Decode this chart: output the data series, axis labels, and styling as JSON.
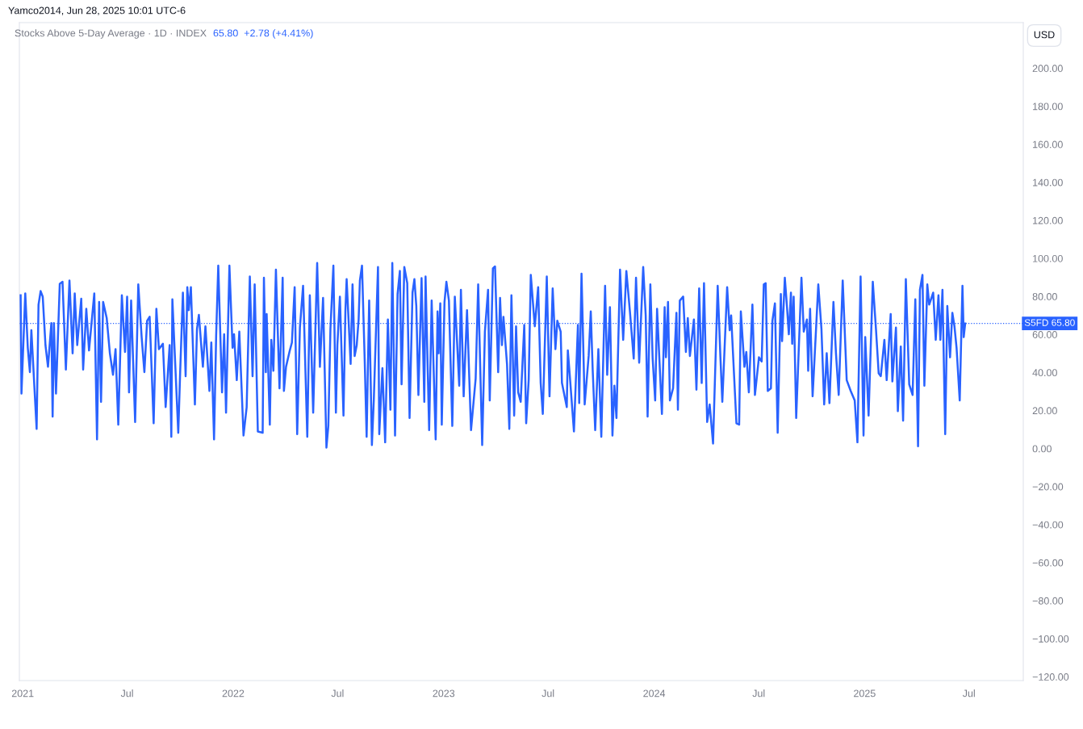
{
  "chart_data": {
    "type": "line",
    "title": "Stocks Above 5-Day Average · 1D · INDEX",
    "subtitle": "65.80  +2.78 (+4.41%)",
    "annotations": [
      "Yamco2014, Jun 28, 2025 10:01 UTC-6",
      "USD"
    ],
    "series": [
      {
        "name": null,
        "color": "#2962ff",
        "x": [
          2020.99,
          2020.994,
          2021.012,
          2021.024,
          2021.034,
          2021.041,
          2021.066,
          2021.075,
          2021.085,
          2021.095,
          2021.108,
          2021.12,
          2021.136,
          2021.142,
          2021.148,
          2021.158,
          2021.176,
          2021.189,
          2021.205,
          2021.222,
          2021.237,
          2021.247,
          2021.259,
          2021.278,
          2021.287,
          2021.302,
          2021.315,
          2021.34,
          2021.353,
          2021.363,
          2021.372,
          2021.382,
          2021.399,
          2021.414,
          2021.429,
          2021.441,
          2021.454,
          2021.471,
          2021.486,
          2021.496,
          2021.505,
          2021.515,
          2021.534,
          2021.549,
          2021.565,
          2021.578,
          2021.591,
          2021.603,
          2021.622,
          2021.635,
          2021.647,
          2021.666,
          2021.679,
          2021.698,
          2021.706,
          2021.711,
          2021.739,
          2021.748,
          2021.761,
          2021.774,
          2021.782,
          2021.789,
          2021.799,
          2021.818,
          2021.828,
          2021.837,
          2021.856,
          2021.868,
          2021.887,
          2021.896,
          2021.909,
          2021.919,
          2021.929,
          2021.947,
          2021.957,
          2021.966,
          2021.982,
          2021.997,
          2022.004,
          2022.017,
          2022.029,
          2022.049,
          2022.064,
          2022.079,
          2022.092,
          2022.102,
          2022.117,
          2022.14,
          2022.146,
          2022.155,
          2022.159,
          2022.174,
          2022.181,
          2022.191,
          2022.203,
          2022.22,
          2022.235,
          2022.241,
          2022.251,
          2022.269,
          2022.279,
          2022.292,
          2022.304,
          2022.317,
          2022.332,
          2022.352,
          2022.364,
          2022.38,
          2022.399,
          2022.412,
          2022.427,
          2022.443,
          2022.452,
          2022.462,
          2022.476,
          2022.488,
          2022.495,
          2022.507,
          2022.524,
          2022.533,
          2022.539,
          2022.558,
          2022.567,
          2022.577,
          2022.587,
          2022.596,
          2022.602,
          2022.612,
          2022.625,
          2022.634,
          2022.646,
          2022.659,
          2022.668,
          2022.688,
          2022.694,
          2022.709,
          2022.722,
          2022.735,
          2022.747,
          2022.756,
          2022.769,
          2022.781,
          2022.792,
          2022.8,
          2022.813,
          2022.827,
          2022.838,
          2022.852,
          2022.861,
          2022.87,
          2022.88,
          2022.895,
          2022.908,
          2022.914,
          2022.931,
          2022.943,
          2022.962,
          2022.971,
          2022.976,
          2022.984,
          2022.991,
          2023.004,
          2023.013,
          2023.025,
          2023.041,
          2023.053,
          2023.074,
          2023.082,
          2023.095,
          2023.111,
          2023.13,
          2023.152,
          2023.164,
          2023.183,
          2023.196,
          2023.211,
          2023.219,
          2023.234,
          2023.244,
          2023.259,
          2023.268,
          2023.277,
          2023.284,
          2023.301,
          2023.312,
          2023.322,
          2023.335,
          2023.344,
          2023.354,
          2023.366,
          2023.383,
          2023.392,
          2023.404,
          2023.414,
          2023.433,
          2023.449,
          2023.461,
          2023.471,
          2023.49,
          2023.503,
          2023.518,
          2023.531,
          2023.54,
          2023.556,
          2023.562,
          2023.585,
          2023.59,
          2023.6,
          2023.619,
          2023.638,
          2023.644,
          2023.655,
          2023.67,
          2023.689,
          2023.699,
          2023.708,
          2023.72,
          2023.735,
          2023.749,
          2023.767,
          2023.777,
          2023.79,
          2023.802,
          2023.811,
          2023.821,
          2023.838,
          2023.853,
          2023.868,
          2023.885,
          2023.903,
          2023.914,
          2023.929,
          2023.948,
          2023.96,
          2023.969,
          2023.982,
          2023.993,
          2024.005,
          2024.014,
          2024.037,
          2024.05,
          2024.056,
          2024.066,
          2024.075,
          2024.09,
          2024.106,
          2024.113,
          2024.122,
          2024.138,
          2024.151,
          2024.16,
          2024.17,
          2024.189,
          2024.201,
          2024.214,
          2024.226,
          2024.237,
          2024.252,
          2024.264,
          2024.28,
          2024.302,
          2024.315,
          2024.324,
          2024.347,
          2024.359,
          2024.366,
          2024.391,
          2024.404,
          2024.412,
          2024.429,
          2024.438,
          2024.45,
          2024.467,
          2024.479,
          2024.498,
          2024.511,
          2024.521,
          2024.53,
          2024.54,
          2024.555,
          2024.562,
          2024.574,
          2024.587,
          2024.602,
          2024.608,
          2024.621,
          2024.631,
          2024.64,
          2024.65,
          2024.656,
          2024.663,
          2024.675,
          2024.7,
          2024.711,
          2024.726,
          2024.732,
          2024.741,
          2024.753,
          2024.77,
          2024.78,
          2024.795,
          2024.808,
          2024.82,
          2024.833,
          2024.852,
          2024.864,
          2024.877,
          2024.896,
          2024.915,
          2024.934,
          2024.953,
          2024.966,
          2024.981,
          2024.995,
          2025.003,
          2025.019,
          2025.039,
          2025.054,
          2025.067,
          2025.077,
          2025.094,
          2025.105,
          2025.124,
          2025.132,
          2025.149,
          2025.158,
          2025.172,
          2025.183,
          2025.196,
          2025.212,
          2025.228,
          2025.241,
          2025.254,
          2025.263,
          2025.275,
          2025.284,
          2025.298,
          2025.307,
          2025.326,
          2025.338,
          2025.351,
          2025.36,
          2025.37,
          2025.383,
          2025.393,
          2025.406,
          2025.417,
          2025.427,
          2025.437,
          2025.452,
          2025.465,
          2025.471,
          2025.478
        ],
        "values": [
          80.6,
          28.9,
          81.6,
          53.0,
          40.2,
          62.2,
          10.4,
          75.7,
          82.8,
          79.9,
          54.4,
          43.0,
          66.0,
          16.8,
          66.0,
          28.9,
          86.7,
          87.7,
          41.6,
          88.4,
          50.1,
          81.6,
          54.4,
          78.8,
          41.6,
          73.5,
          51.6,
          81.6,
          4.8,
          77.1,
          24.6,
          77.1,
          68.6,
          50.1,
          38.8,
          52.3,
          12.6,
          80.6,
          50.8,
          79.9,
          29.6,
          77.8,
          14.0,
          86.3,
          58.6,
          40.2,
          67.2,
          69.3,
          13.3,
          73.5,
          52.3,
          55.1,
          21.8,
          54.4,
          6.2,
          78.5,
          8.3,
          40.2,
          82.0,
          38.1,
          84.9,
          72.8,
          84.9,
          23.2,
          62.9,
          70.3,
          43.0,
          64.3,
          30.3,
          55.8,
          4.8,
          59.4,
          96.2,
          29.6,
          60.1,
          18.9,
          96.2,
          53.0,
          60.1,
          36.0,
          61.5,
          6.9,
          21.8,
          90.5,
          38.1,
          86.3,
          9.0,
          8.3,
          89.8,
          40.2,
          70.7,
          12.6,
          57.2,
          40.9,
          94.1,
          31.7,
          89.8,
          30.3,
          43.0,
          51.6,
          55.8,
          84.9,
          7.6,
          63.6,
          85.6,
          6.2,
          80.6,
          18.9,
          97.6,
          43.0,
          79.2,
          0.5,
          11.9,
          62.9,
          96.2,
          18.9,
          54.4,
          79.9,
          17.4,
          72.1,
          89.1,
          44.5,
          86.3,
          48.7,
          54.4,
          67.9,
          88.4,
          96.2,
          45.8,
          6.2,
          77.8,
          1.9,
          25.3,
          95.5,
          7.6,
          42.3,
          3.3,
          67.9,
          20.4,
          97.6,
          6.9,
          81.3,
          93.4,
          33.8,
          95.5,
          87.0,
          16.1,
          82.0,
          89.1,
          75.0,
          28.2,
          89.6,
          24.6,
          90.5,
          9.7,
          77.8,
          4.8,
          72.1,
          50.1,
          76.4,
          12.6,
          77.1,
          87.7,
          77.8,
          11.9,
          79.9,
          33.1,
          83.5,
          27.5,
          72.8,
          9.7,
          36.7,
          86.3,
          1.9,
          61.5,
          83.5,
          25.3,
          94.8,
          95.8,
          40.2,
          79.2,
          54.4,
          69.3,
          44.5,
          10.4,
          80.6,
          17.4,
          64.3,
          29.6,
          24.6,
          65.0,
          13.3,
          36.0,
          91.3,
          64.3,
          84.9,
          34.5,
          18.2,
          90.5,
          27.5,
          84.2,
          52.3,
          67.2,
          61.5,
          34.5,
          21.8,
          51.6,
          37.4,
          9.0,
          65.0,
          23.9,
          92.0,
          23.2,
          48.7,
          72.1,
          41.6,
          9.7,
          52.3,
          6.2,
          85.6,
          38.8,
          74.3,
          6.9,
          33.1,
          16.1,
          94.1,
          57.2,
          93.4,
          72.1,
          47.3,
          89.8,
          45.2,
          95.5,
          70.0,
          16.8,
          86.3,
          47.3,
          25.3,
          73.5,
          18.2,
          74.3,
          48.0,
          77.1,
          25.3,
          31.7,
          71.4,
          20.4,
          77.8,
          79.9,
          50.8,
          68.6,
          48.7,
          67.9,
          31.0,
          84.2,
          34.5,
          87.0,
          14.0,
          23.2,
          2.6,
          85.6,
          48.0,
          24.6,
          84.9,
          62.2,
          70.0,
          13.3,
          12.6,
          72.1,
          43.0,
          50.8,
          29.6,
          75.7,
          28.2,
          48.0,
          45.8,
          86.3,
          87.0,
          30.3,
          31.7,
          67.2,
          76.4,
          8.3,
          81.3,
          56.5,
          89.8,
          75.0,
          60.1,
          82.0,
          55.1,
          79.9,
          16.1,
          89.8,
          61.5,
          67.9,
          40.9,
          73.5,
          27.5,
          64.3,
          86.3,
          62.9,
          23.2,
          50.1,
          23.9,
          77.1,
          50.1,
          28.2,
          88.4,
          36.0,
          30.3,
          25.3,
          3.3,
          90.5,
          6.9,
          58.6,
          17.4,
          87.7,
          62.9,
          39.5,
          38.1,
          57.2,
          36.0,
          70.7,
          35.3,
          63.6,
          19.7,
          53.7,
          14.7,
          89.1,
          33.8,
          28.2,
          78.5,
          1.2,
          83.5,
          91.3,
          33.1,
          86.3,
          75.7,
          82.0,
          57.2,
          80.6,
          57.2,
          83.5,
          7.6,
          75.0,
          48.0,
          71.4,
          64.3,
          53.0,
          25.3,
          85.6,
          58.6,
          65.8
        ]
      }
    ],
    "xlim": [
      2020.984,
      2025.754
    ],
    "xticks": [
      2021,
      {
        "value": 2021.496,
        "label": "Jul"
      },
      2022,
      {
        "value": 2022.496,
        "label": "Jul"
      },
      2023,
      {
        "value": 2023.496,
        "label": "Jul"
      },
      2024,
      {
        "value": 2024.497,
        "label": "Jul"
      },
      2025,
      {
        "value": 2025.496,
        "label": "Jul"
      }
    ],
    "ylim": [
      -122,
      224
    ],
    "yticks": [
      {
        "value": -120,
        "label": "−120.00"
      },
      {
        "value": -100,
        "label": "−100.00"
      },
      {
        "value": -80,
        "label": "−80.00"
      },
      {
        "value": -60,
        "label": "−60.00"
      },
      {
        "value": -40,
        "label": "−40.00"
      },
      {
        "value": -20,
        "label": "−20.00"
      },
      {
        "value": 0,
        "label": "0.00"
      },
      {
        "value": 20,
        "label": "20.00"
      },
      {
        "value": 40,
        "label": "40.00"
      },
      {
        "value": 60,
        "label": "60.00"
      },
      {
        "value": 80,
        "label": "80.00"
      },
      {
        "value": 100,
        "label": "100.00"
      },
      {
        "value": 120,
        "label": "120.00"
      },
      {
        "value": 140,
        "label": "140.00"
      },
      {
        "value": 160,
        "label": "160.00"
      },
      {
        "value": 180,
        "label": "180.00"
      },
      {
        "value": 200,
        "label": "200.00"
      }
    ],
    "ref_lines": [
      {
        "axis": "y",
        "value": 65.8,
        "label": "S5FD 65.80",
        "color": "#2962ff",
        "line_style": "dotted"
      }
    ],
    "grid": false,
    "marker": "none",
    "line_style": "solid"
  }
}
